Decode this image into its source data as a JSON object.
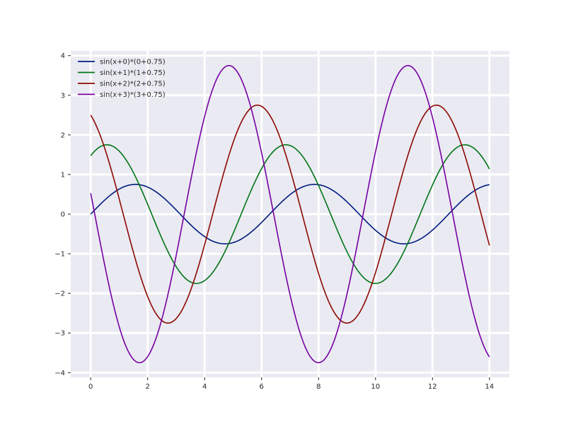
{
  "chart_data": {
    "type": "line",
    "title": "",
    "xlabel": "",
    "ylabel": "",
    "xlim": [
      -0.7,
      14.7
    ],
    "ylim": [
      -4.12,
      4.12
    ],
    "grid": true,
    "legend_position": "top-left",
    "background": "#eaeaf2",
    "grid_color": "#ffffff",
    "x_ticks": [
      0,
      2,
      4,
      6,
      8,
      10,
      12,
      14
    ],
    "y_ticks": [
      -4,
      -3,
      -2,
      -1,
      0,
      1,
      2,
      3,
      4
    ],
    "x_tick_labels": [
      "0",
      "2",
      "4",
      "6",
      "8",
      "10",
      "12",
      "14"
    ],
    "y_tick_labels": [
      "−4",
      "−3",
      "−2",
      "−1",
      "0",
      "1",
      "2",
      "3",
      "4"
    ],
    "x_range": [
      0,
      14
    ],
    "series": [
      {
        "name": "sin(x+0)*(0+0.75)",
        "color": "#001c7f",
        "phase": 0,
        "amplitude": 0.75,
        "formula": "sin(x+0)*(0+0.75)"
      },
      {
        "name": "sin(x+1)*(1+0.75)",
        "color": "#017517",
        "phase": 1,
        "amplitude": 1.75,
        "formula": "sin(x+1)*(1+0.75)"
      },
      {
        "name": "sin(x+2)*(2+0.75)",
        "color": "#8c0900",
        "phase": 2,
        "amplitude": 2.75,
        "formula": "sin(x+2)*(2+0.75)"
      },
      {
        "name": "sin(x+3)*(3+0.75)",
        "color": "#7600a1",
        "phase": 3,
        "amplitude": 3.75,
        "formula": "sin(x+3)*(3+0.75)"
      }
    ]
  }
}
